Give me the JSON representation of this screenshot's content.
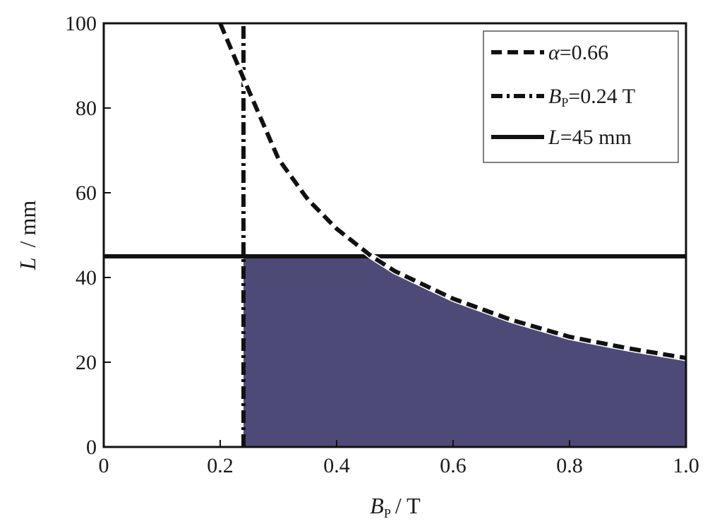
{
  "chart_data": {
    "type": "line",
    "title": "",
    "xlabel": {
      "symbol": "B",
      "subscript": "P",
      "unit": "/ T"
    },
    "ylabel": {
      "symbol": "L",
      "unit": "/ mm"
    },
    "xlim": [
      0,
      1.0
    ],
    "ylim": [
      0,
      100
    ],
    "x_ticks": [
      "0",
      "0.2",
      "0.4",
      "0.6",
      "0.8",
      "1.0"
    ],
    "x_tick_values": [
      0,
      0.2,
      0.4,
      0.6,
      0.8,
      1.0
    ],
    "y_ticks": [
      "0",
      "20",
      "40",
      "60",
      "80",
      "100"
    ],
    "y_tick_values": [
      0,
      20,
      40,
      60,
      80,
      100
    ],
    "grid": false,
    "legend_position": "top-right",
    "series": [
      {
        "name": "α=0.66",
        "legend": {
          "symbol": "α",
          "value": "=0.66"
        },
        "style": "dashed",
        "x": [
          0.2,
          0.24,
          0.3,
          0.35,
          0.4,
          0.46,
          0.5,
          0.6,
          0.7,
          0.8,
          0.9,
          1.0
        ],
        "y": [
          100,
          87,
          68,
          58.5,
          51.5,
          45,
          41.5,
          35,
          30,
          26,
          23.3,
          21
        ]
      },
      {
        "name": "BP=0.24 T",
        "legend": {
          "symbol": "B",
          "subscript": "P",
          "value": "=0.24 T"
        },
        "style": "dash-dot",
        "x": [
          0.24,
          0.24
        ],
        "y": [
          0,
          100
        ]
      },
      {
        "name": "L=45 mm",
        "legend": {
          "symbol": "L",
          "value": "=45 mm"
        },
        "style": "solid",
        "x": [
          0,
          1.0
        ],
        "y": [
          45,
          45
        ]
      }
    ],
    "shaded_region": {
      "color": "#4d4a78",
      "x_from": 0.24,
      "x_to": 1.0,
      "bounded_above_by": [
        "L=45 mm",
        "α=0.66"
      ]
    }
  },
  "colors": {
    "line": "#111111",
    "fill": "#4d4a78",
    "frame": "#111111"
  }
}
